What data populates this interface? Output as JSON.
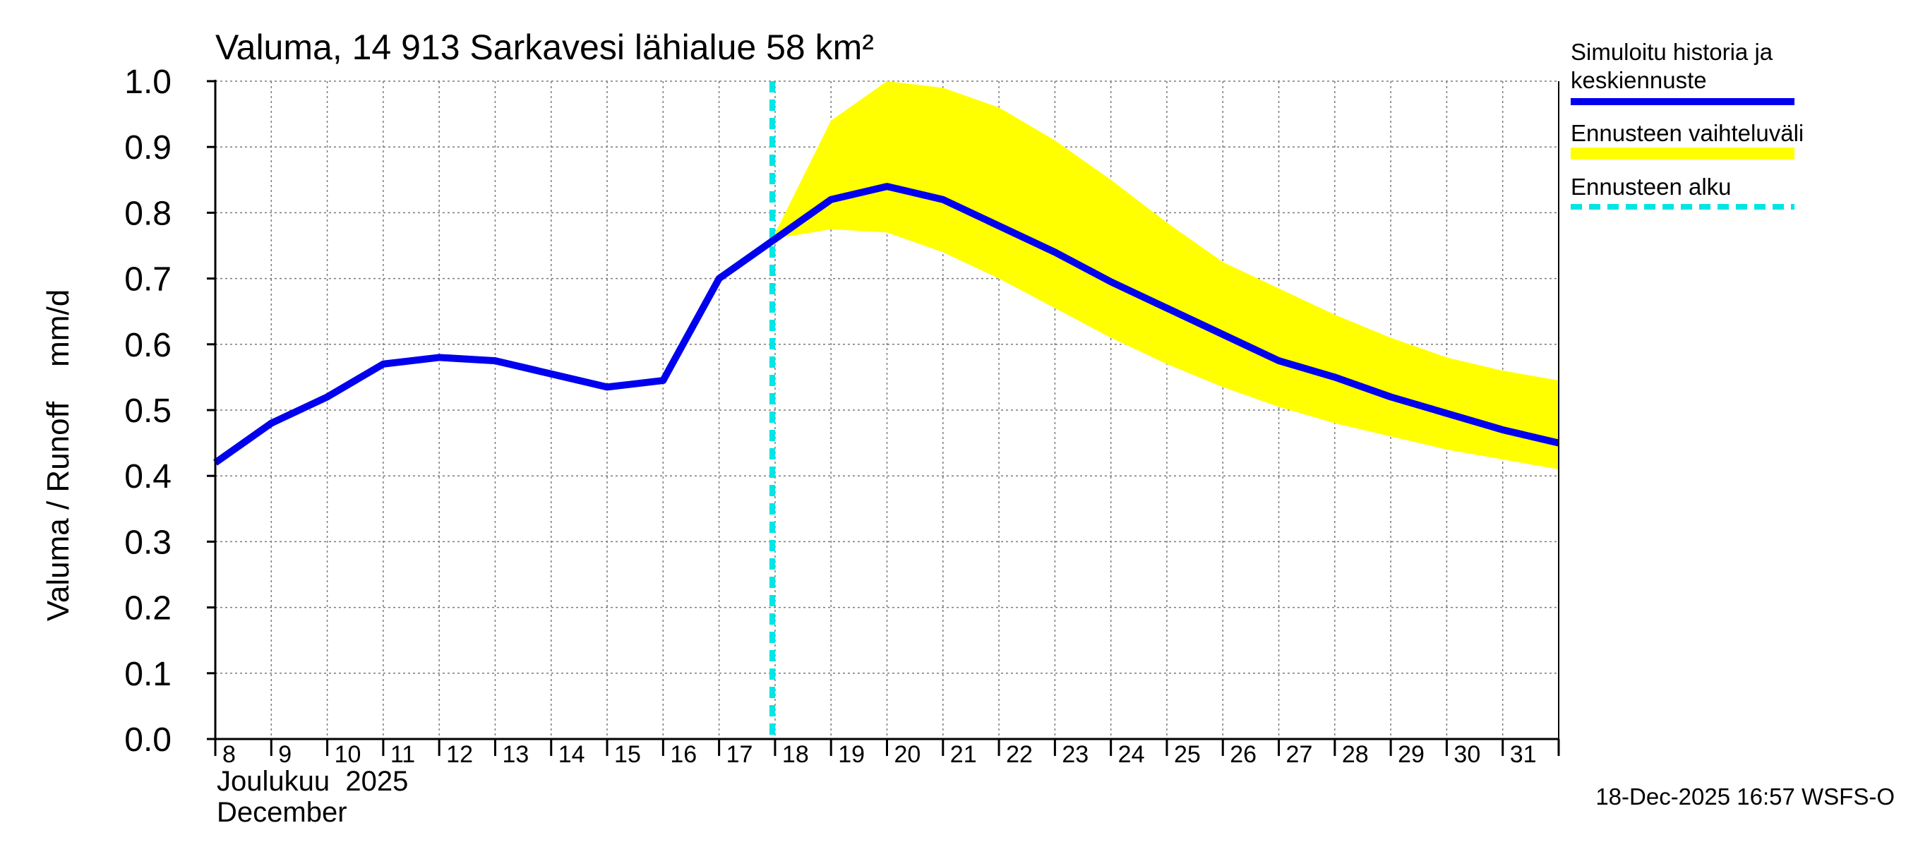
{
  "chart_data": {
    "type": "line",
    "title": "Valuma, 14 913 Sarkavesi lähialue 58 km²",
    "ylabel": "Valuma / Runoff    mm/d",
    "xlabel_fi": "Joulukuu  2025",
    "xlabel_en": "December",
    "ylim": [
      0.0,
      1.0
    ],
    "xlim": [
      8,
      32
    ],
    "yticks": [
      "0.0",
      "0.1",
      "0.2",
      "0.3",
      "0.4",
      "0.5",
      "0.6",
      "0.7",
      "0.8",
      "0.9",
      "1.0"
    ],
    "xticks": [
      "8",
      "9",
      "10",
      "11",
      "12",
      "13",
      "14",
      "15",
      "16",
      "17",
      "18",
      "19",
      "20",
      "21",
      "22",
      "23",
      "24",
      "25",
      "26",
      "27",
      "28",
      "29",
      "30",
      "31"
    ],
    "forecast_start": 17.95,
    "series": [
      {
        "name": "Simuloitu historia ja keskiennuste",
        "color": "#0000ee",
        "x": [
          8,
          9,
          10,
          11,
          12,
          13,
          14,
          15,
          16,
          17,
          18,
          19,
          20,
          21,
          22,
          23,
          24,
          25,
          26,
          27,
          28,
          29,
          30,
          31,
          32
        ],
        "values": [
          0.42,
          0.48,
          0.52,
          0.57,
          0.58,
          0.575,
          0.555,
          0.535,
          0.545,
          0.7,
          0.76,
          0.82,
          0.84,
          0.82,
          0.78,
          0.74,
          0.695,
          0.655,
          0.615,
          0.575,
          0.55,
          0.52,
          0.495,
          0.47,
          0.45
        ]
      }
    ],
    "band": {
      "name": "Ennusteen vaihteluväli",
      "color": "#ffff00",
      "x": [
        17.95,
        19,
        20,
        21,
        22,
        23,
        24,
        25,
        26,
        27,
        28,
        29,
        30,
        31,
        32
      ],
      "upper": [
        0.76,
        0.94,
        1.0,
        0.99,
        0.96,
        0.91,
        0.85,
        0.785,
        0.725,
        0.685,
        0.645,
        0.61,
        0.58,
        0.56,
        0.545
      ],
      "lower": [
        0.76,
        0.775,
        0.77,
        0.74,
        0.7,
        0.655,
        0.61,
        0.57,
        0.535,
        0.505,
        0.48,
        0.46,
        0.44,
        0.425,
        0.41
      ]
    },
    "legend": [
      {
        "label": "Simuloitu historia ja",
        "label2": "keskiennuste",
        "color": "#0000ee",
        "style": "solid"
      },
      {
        "label": "Ennusteen vaihteluväli",
        "color": "#ffff00",
        "style": "band"
      },
      {
        "label": "Ennusteen alku",
        "color": "#00e5e5",
        "style": "dashed"
      }
    ],
    "footer": "18-Dec-2025 16:57 WSFS-O"
  }
}
